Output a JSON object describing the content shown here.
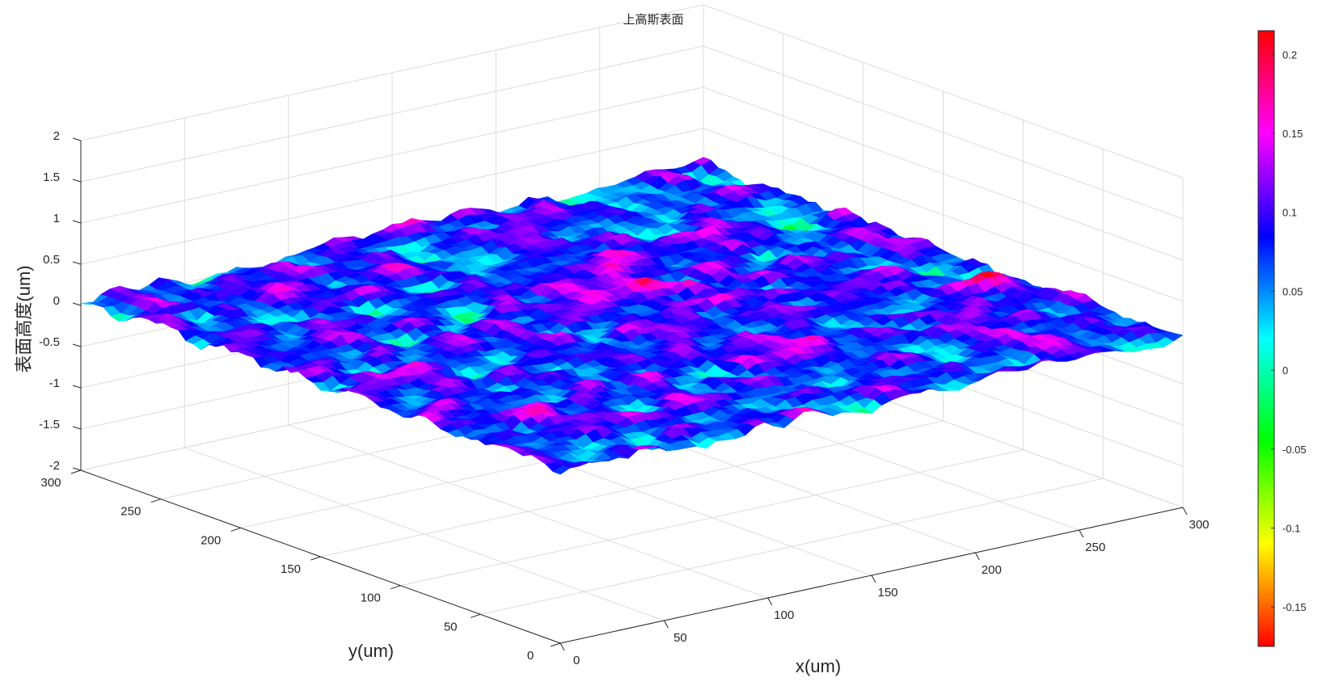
{
  "chart_data": {
    "type": "surface",
    "title": "上高斯表面",
    "xlabel": "x(um)",
    "ylabel": "y(um)",
    "zlabel": "表面高度(um)",
    "xlim": [
      0,
      300
    ],
    "ylim": [
      0,
      300
    ],
    "zlim": [
      -2,
      2
    ],
    "x_ticks": [
      0,
      50,
      100,
      150,
      200,
      250,
      300
    ],
    "y_ticks": [
      0,
      50,
      100,
      150,
      200,
      250,
      300
    ],
    "z_ticks": [
      -2,
      -1.5,
      -1,
      -0.5,
      0,
      0.5,
      1,
      1.5,
      2
    ],
    "x_tick_labels": [
      "0",
      "50",
      "100",
      "150",
      "200",
      "250",
      "300"
    ],
    "y_tick_labels": [
      "0",
      "50",
      "100",
      "150",
      "200",
      "250",
      "300"
    ],
    "z_tick_labels": [
      "-2",
      "-1.5",
      "-1",
      "-0.5",
      "0",
      "0.5",
      "1",
      "1.5",
      "2"
    ],
    "grid": true,
    "surface": {
      "description_values": "random rough surface, heights roughly between -0.17 and 0.21 um",
      "z_min": -0.17,
      "z_max": 0.215,
      "mean": 0.03
    },
    "colorbar": {
      "position": "right",
      "range": [
        -0.175,
        0.215
      ],
      "ticks": [
        -0.15,
        -0.1,
        -0.05,
        0,
        0.05,
        0.1,
        0.15,
        0.2
      ],
      "tick_labels": [
        "-0.15",
        "-0.1",
        "-0.05",
        "0",
        "0.05",
        "0.1",
        "0.15",
        "0.2"
      ],
      "colormap": [
        "#ff0000",
        "#ff8000",
        "#ffff00",
        "#80ff00",
        "#00ff00",
        "#00ff80",
        "#00ffff",
        "#0080ff",
        "#0000ff",
        "#8000ff",
        "#ff00ff",
        "#ff0080",
        "#ff0000"
      ]
    }
  }
}
